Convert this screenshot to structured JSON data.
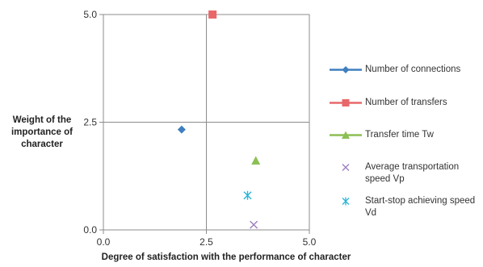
{
  "chart_data": {
    "type": "scatter",
    "ylabel_lines": [
      "Weight  of the",
      "importance of",
      "character"
    ],
    "xlabel": "Degree of satisfaction with the performance of character",
    "xlim": [
      0,
      5
    ],
    "ylim": [
      0,
      5
    ],
    "xticks": [
      "0.0",
      "2.5",
      "5.0"
    ],
    "yticks": [
      "0.0",
      "2.5",
      "5.0"
    ],
    "quadrant_lines": {
      "x": 2.5,
      "y": 2.5
    },
    "grid": false,
    "legend_position": "right",
    "series": [
      {
        "name": "Number of connections",
        "marker": "diamond",
        "color": "#3f7fbf",
        "x": 1.9,
        "y": 2.33
      },
      {
        "name": "Number of transfers",
        "marker": "square",
        "color": "#e8686a",
        "x": 2.65,
        "y": 5.0
      },
      {
        "name": "Transfer time Tw",
        "marker": "triangle",
        "color": "#8cbf54",
        "x": 3.7,
        "y": 1.6
      },
      {
        "name": "Average transportation speed Vp",
        "marker": "x",
        "color": "#9b7fc2",
        "x": 3.65,
        "y": 0.12
      },
      {
        "name": "Start-stop achieving speed Vd",
        "marker": "star",
        "color": "#2cb5d6",
        "x": 3.5,
        "y": 0.8
      }
    ]
  }
}
